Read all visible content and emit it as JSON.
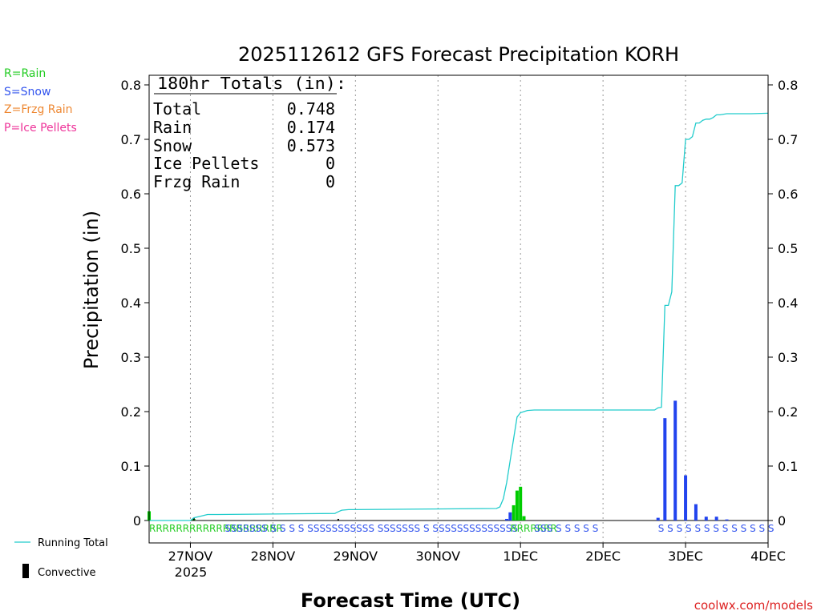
{
  "chart_data": {
    "type": "bar",
    "title": "2025112612 GFS Forecast Precipitation KORH",
    "xlabel": "Forecast Time (UTC)",
    "ylabel": "Precipitation (in)",
    "ylim": [
      0,
      0.82
    ],
    "xlim_hours": [
      0,
      180
    ],
    "y_ticks": [
      "0",
      "0.1",
      "0.2",
      "0.3",
      "0.4",
      "0.5",
      "0.6",
      "0.7",
      "0.8"
    ],
    "x_ticks": [
      {
        "label": "27NOV",
        "hour": 12
      },
      {
        "label": "28NOV",
        "hour": 36
      },
      {
        "label": "29NOV",
        "hour": 60
      },
      {
        "label": "30NOV",
        "hour": 84
      },
      {
        "label": "1DEC",
        "hour": 108
      },
      {
        "label": "2DEC",
        "hour": 132
      },
      {
        "label": "3DEC",
        "hour": 156
      },
      {
        "label": "4DEC",
        "hour": 180
      }
    ],
    "year_label": "2025",
    "totals": {
      "header": "180hr Totals (in):",
      "rows": [
        {
          "label": "Total",
          "value": "0.748"
        },
        {
          "label": "Rain",
          "value": "0.174"
        },
        {
          "label": "Snow",
          "value": "0.573"
        },
        {
          "label": "Ice Pellets",
          "value": "0"
        },
        {
          "label": "Frzg Rain",
          "value": "0"
        }
      ]
    },
    "legend_types": [
      {
        "text": "R=Rain",
        "color": "#22cc22"
      },
      {
        "text": "S=Snow",
        "color": "#3355ee"
      },
      {
        "text": "Z=Frzg Rain",
        "color": "#ee8833"
      },
      {
        "text": "P=Ice Pellets",
        "color": "#ee3399"
      }
    ],
    "legend_lines": [
      {
        "text": "Running Total",
        "color": "#22cccc"
      },
      {
        "text": "Convective",
        "color": "#000000"
      }
    ],
    "colors": {
      "rain": "#00cc00",
      "snow": "#2244ee",
      "total": "#22cccc",
      "convective": "#000000"
    },
    "series": [
      {
        "name": "Rain",
        "type": "bar",
        "points": [
          [
            0,
            0.017
          ],
          [
            13,
            0.003
          ],
          [
            106,
            0.028
          ],
          [
            107,
            0.055
          ],
          [
            108,
            0.062
          ],
          [
            109,
            0.008
          ]
        ]
      },
      {
        "name": "Snow",
        "type": "bar",
        "points": [
          [
            104,
            0.003
          ],
          [
            105,
            0.015
          ],
          [
            148,
            0.005
          ],
          [
            150,
            0.188
          ],
          [
            153,
            0.22
          ],
          [
            156,
            0.083
          ],
          [
            159,
            0.03
          ],
          [
            162,
            0.007
          ],
          [
            165,
            0.007
          ],
          [
            168,
            0.002
          ]
        ]
      },
      {
        "name": "Convective",
        "type": "bar",
        "points": [
          [
            13,
            0.005
          ],
          [
            55,
            0.003
          ]
        ]
      },
      {
        "name": "Running Total",
        "type": "line",
        "x": [
          0,
          12,
          13,
          15,
          17,
          20,
          54,
          55,
          56,
          58,
          60,
          101,
          102,
          103,
          104,
          105,
          106,
          107,
          108,
          109,
          110,
          112,
          147,
          148,
          149,
          150,
          151,
          152,
          153,
          154,
          155,
          156,
          157,
          158,
          159,
          160,
          161,
          162,
          163,
          164,
          165,
          166,
          168,
          175,
          180
        ],
        "y": [
          0,
          0,
          0.005,
          0.008,
          0.011,
          0.011,
          0.013,
          0.016,
          0.019,
          0.02,
          0.02,
          0.022,
          0.025,
          0.04,
          0.07,
          0.11,
          0.15,
          0.19,
          0.198,
          0.2,
          0.202,
          0.203,
          0.203,
          0.207,
          0.208,
          0.395,
          0.395,
          0.42,
          0.615,
          0.615,
          0.62,
          0.7,
          0.7,
          0.705,
          0.73,
          0.73,
          0.735,
          0.737,
          0.737,
          0.74,
          0.745,
          0.745,
          0.747,
          0.747,
          0.748
        ]
      }
    ],
    "ptype_codes": [
      {
        "text": "RRRRRRRRRRRRRRRRRRRR",
        "color": "#22cc22",
        "hour": 0
      },
      {
        "text": "SSSSSSS S S S S SSSSSSSSSSS SSSSSSS S SSSSSSSSSSSSSS",
        "color": "#3355ee",
        "hour": 22
      },
      {
        "text": "RRRRRRR",
        "color": "#22cc22",
        "hour": 105
      },
      {
        "text": "SSS S S S S S",
        "color": "#3355ee",
        "hour": 112
      },
      {
        "text": "S S S S S S S S S S S S S",
        "color": "#3355ee",
        "hour": 148
      }
    ],
    "watermark": "coolwx.com/models"
  }
}
